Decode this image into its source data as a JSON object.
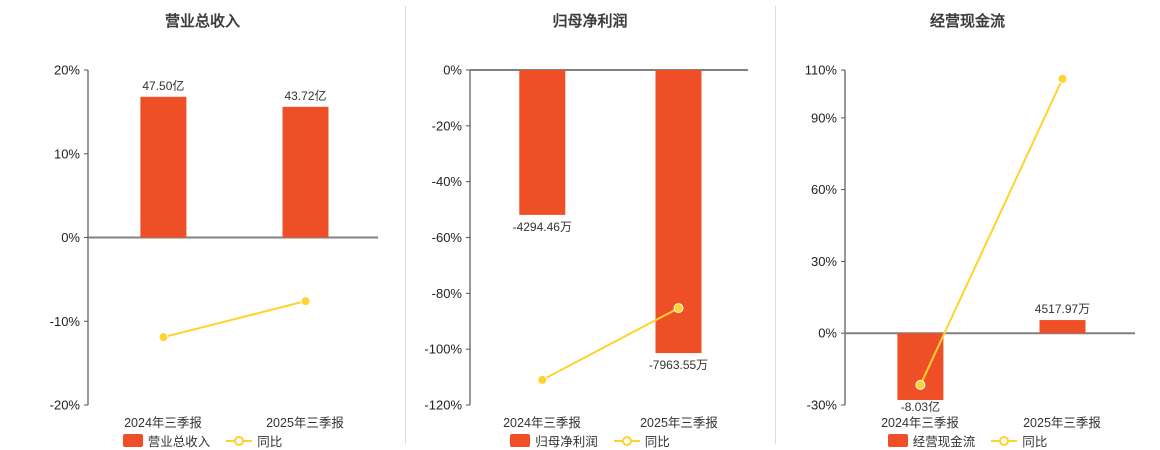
{
  "colors": {
    "bar": "#ee4f27",
    "line": "#ffd22e",
    "axis": "#555555",
    "zero_line": "#808080",
    "text": "#333333",
    "divider": "#dddddd"
  },
  "chart_data": [
    {
      "type": "bar+line",
      "title": "营业总收入",
      "categories": [
        "2024年三季报",
        "2025年三季报"
      ],
      "bar_series": {
        "name": "营业总收入",
        "display_values": [
          "47.50亿",
          "43.72亿"
        ],
        "plotted_pct": [
          16.8,
          15.6
        ]
      },
      "line_series": {
        "name": "同比",
        "values_pct": [
          -11.9,
          -7.6
        ]
      },
      "y_axis": {
        "ticks": [
          "20%",
          "10%",
          "0%",
          "-10%",
          "-20%"
        ],
        "tick_values": [
          20,
          10,
          0,
          -10,
          -20
        ],
        "max": 20,
        "min": -20
      },
      "legend_position": "bottom",
      "grid": false
    },
    {
      "type": "bar+line",
      "title": "归母净利润",
      "categories": [
        "2024年三季报",
        "2025年三季报"
      ],
      "bar_series": {
        "name": "归母净利润",
        "display_values": [
          "-4294.46万",
          "-7963.55万"
        ],
        "plotted_pct": [
          -51.9,
          -101.4
        ]
      },
      "line_series": {
        "name": "同比",
        "values_pct": [
          -111.0,
          -85.3
        ]
      },
      "y_axis": {
        "ticks": [
          "0%",
          "-20%",
          "-40%",
          "-60%",
          "-80%",
          "-100%",
          "-120%"
        ],
        "tick_values": [
          0,
          -20,
          -40,
          -60,
          -80,
          -100,
          -120
        ],
        "max": 0,
        "min": -120
      },
      "legend_position": "bottom",
      "grid": false
    },
    {
      "type": "bar+line",
      "title": "经营现金流",
      "categories": [
        "2024年三季报",
        "2025年三季报"
      ],
      "bar_series": {
        "name": "经营现金流",
        "display_values": [
          "-8.03亿",
          "4517.97万"
        ],
        "plotted_pct": [
          -27.9,
          5.5
        ]
      },
      "line_series": {
        "name": "同比",
        "values_pct": [
          -21.6,
          106.3
        ]
      },
      "y_axis": {
        "ticks": [
          "110%",
          "90%",
          "60%",
          "30%",
          "0%",
          "-30%"
        ],
        "tick_values": [
          110,
          90,
          60,
          30,
          0,
          -30
        ],
        "max": 110,
        "min": -30
      },
      "legend_position": "bottom",
      "grid": false
    }
  ]
}
